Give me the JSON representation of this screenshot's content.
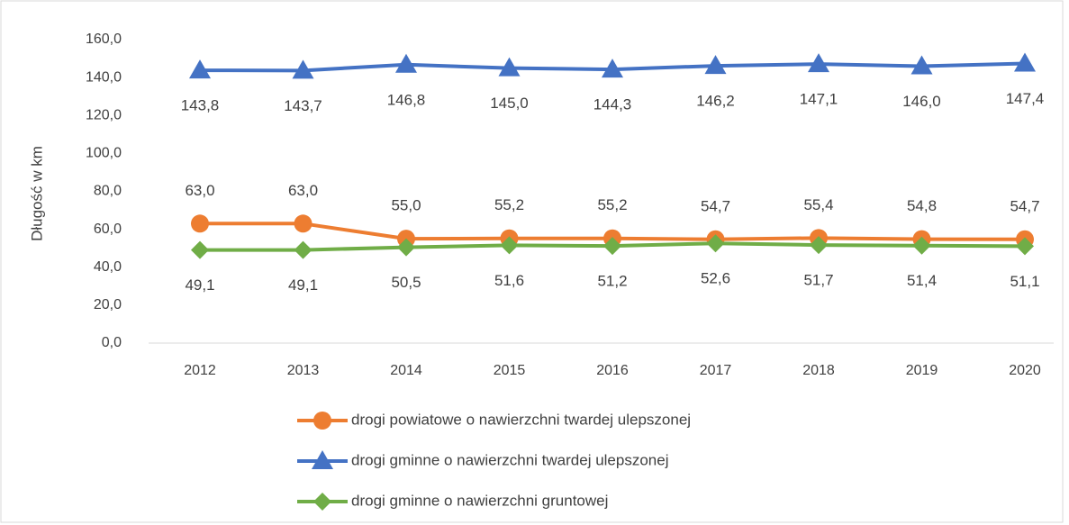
{
  "chart_data": {
    "type": "line",
    "y_label": "Długość w km",
    "categories": [
      "2012",
      "2013",
      "2014",
      "2015",
      "2016",
      "2017",
      "2018",
      "2019",
      "2020"
    ],
    "series": [
      {
        "name": "drogi powiatowe o nawierzchni twardej ulepszonej",
        "color": "#ED7D31",
        "marker": "circle",
        "label_position": "above",
        "values": [
          63.0,
          63.0,
          55.0,
          55.2,
          55.2,
          54.7,
          55.4,
          54.8,
          54.7
        ],
        "value_labels": [
          "63,0",
          "63,0",
          "55,0",
          "55,2",
          "55,2",
          "54,7",
          "55,4",
          "54,8",
          "54,7"
        ]
      },
      {
        "name": "drogi gminne o nawierzchni twardej ulepszonej",
        "color": "#4472C4",
        "marker": "triangle",
        "label_position": "below",
        "values": [
          143.8,
          143.7,
          146.8,
          145.0,
          144.3,
          146.2,
          147.1,
          146.0,
          147.4
        ],
        "value_labels": [
          "143,8",
          "143,7",
          "146,8",
          "145,0",
          "144,3",
          "146,2",
          "147,1",
          "146,0",
          "147,4"
        ]
      },
      {
        "name": "drogi gminne o nawierzchni gruntowej",
        "color": "#70AD47",
        "marker": "diamond",
        "label_position": "below",
        "values": [
          49.1,
          49.1,
          50.5,
          51.6,
          51.2,
          52.6,
          51.7,
          51.4,
          51.1
        ],
        "value_labels": [
          "49,1",
          "49,1",
          "50,5",
          "51,6",
          "51,2",
          "52,6",
          "51,7",
          "51,4",
          "51,1"
        ]
      }
    ],
    "ylim": [
      0,
      160
    ],
    "yticks": [
      {
        "value": 0,
        "label": "0,0"
      },
      {
        "value": 20,
        "label": "20,0"
      },
      {
        "value": 40,
        "label": "40,0"
      },
      {
        "value": 60,
        "label": "60,0"
      },
      {
        "value": 80,
        "label": "80,0"
      },
      {
        "value": 100,
        "label": "100,0"
      },
      {
        "value": 120,
        "label": "120,0"
      },
      {
        "value": 140,
        "label": "140,0"
      },
      {
        "value": 160,
        "label": "160,0"
      }
    ],
    "grid": false,
    "legend": "bottom"
  }
}
